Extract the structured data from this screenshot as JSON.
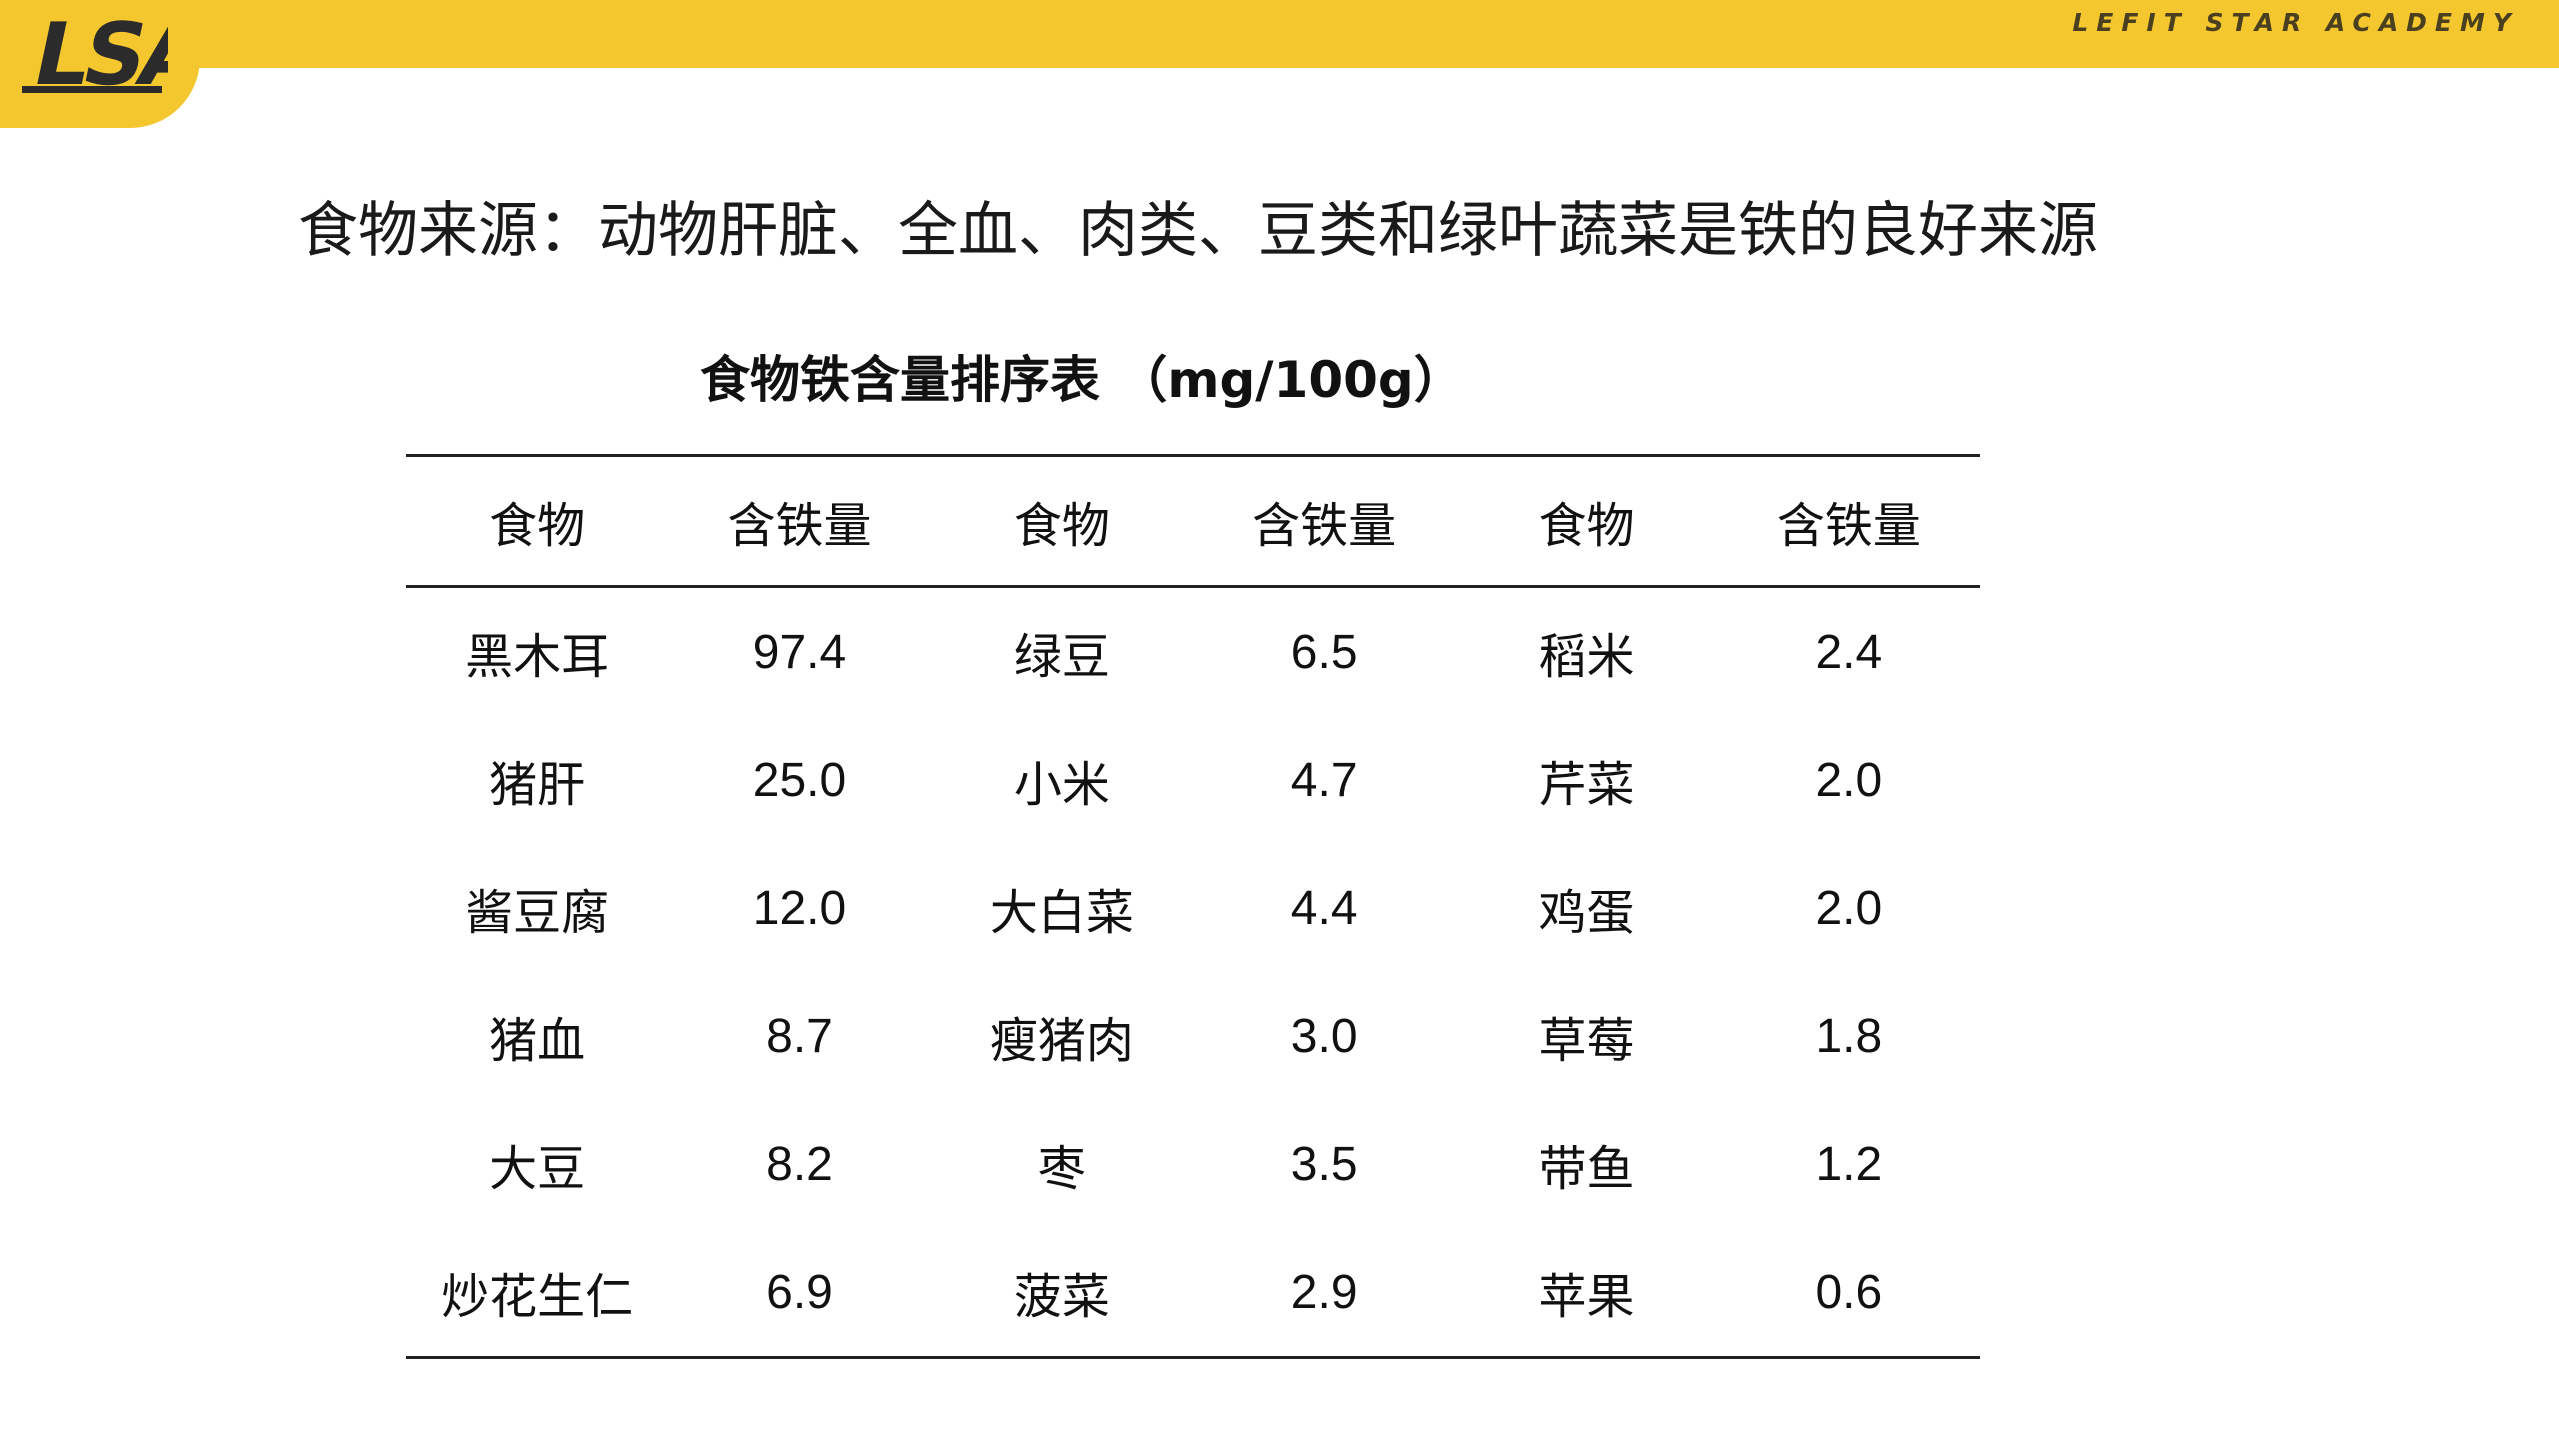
{
  "header": {
    "logo_text": "LSA",
    "academy_name": "LEFIT STAR ACADEMY",
    "bar_color": "#f3c72d"
  },
  "headline": "食物来源：动物肝脏、全血、肉类、豆类和绿叶蔬菜是铁的良好来源",
  "table": {
    "title": "食物铁含量排序表 （mg/100g）",
    "columns": [
      "食物",
      "含铁量",
      "食物",
      "含铁量",
      "食物",
      "含铁量"
    ],
    "rows": [
      [
        "黑木耳",
        "97.4",
        "绿豆",
        "6.5",
        "稻米",
        "2.4"
      ],
      [
        "猪肝",
        "25.0",
        "小米",
        "4.7",
        "芹菜",
        "2.0"
      ],
      [
        "酱豆腐",
        "12.0",
        "大白菜",
        "4.4",
        "鸡蛋",
        "2.0"
      ],
      [
        "猪血",
        "8.7",
        "瘦猪肉",
        "3.0",
        "草莓",
        "1.8"
      ],
      [
        "大豆",
        "8.2",
        "枣",
        "3.5",
        "带鱼",
        "1.2"
      ],
      [
        "炒花生仁",
        "6.9",
        "菠菜",
        "2.9",
        "苹果",
        "0.6"
      ]
    ]
  }
}
